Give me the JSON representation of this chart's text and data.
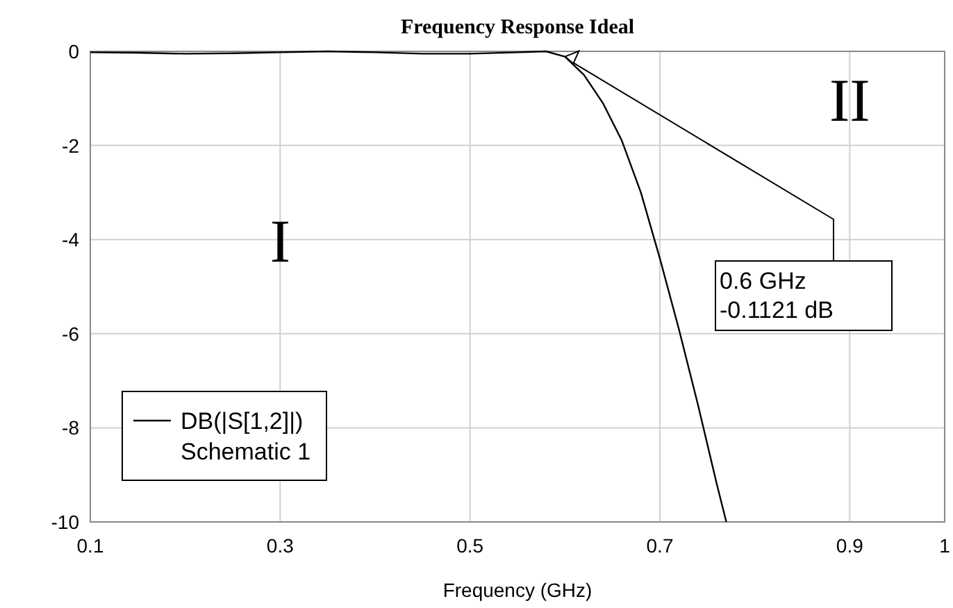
{
  "chart_data": {
    "type": "line",
    "title": "Frequency Response Ideal",
    "xlabel": "Frequency (GHz)",
    "x": [
      0.1,
      0.15,
      0.2,
      0.25,
      0.3,
      0.35,
      0.4,
      0.45,
      0.5,
      0.55,
      0.58,
      0.6,
      0.62,
      0.64,
      0.66,
      0.68,
      0.7,
      0.72,
      0.74,
      0.76,
      0.77
    ],
    "series": [
      {
        "name": "DB(|S[1,2]|)\nSchematic 1",
        "color": "#000000",
        "values": [
          -0.02,
          -0.03,
          -0.05,
          -0.04,
          -0.02,
          0,
          -0.02,
          -0.05,
          -0.05,
          -0.02,
          0,
          -0.1121,
          -0.5,
          -1.1,
          -1.9,
          -3.0,
          -4.4,
          -5.9,
          -7.5,
          -9.2,
          -10
        ]
      }
    ],
    "xlim": [
      0.1,
      1
    ],
    "xticks": [
      0.1,
      0.3,
      0.5,
      0.7,
      0.9,
      1
    ],
    "ylim": [
      -10,
      0
    ],
    "yticks": [
      -10,
      -8,
      -6,
      -4,
      -2,
      0
    ],
    "annotations": [
      "I",
      "II",
      {
        "text": "0.6 GHz\n-0.1121 dB",
        "x": 0.6,
        "y": -0.1121
      }
    ],
    "grid": true,
    "legend": "bottom left",
    "marker": "none",
    "line_style": "solid"
  }
}
